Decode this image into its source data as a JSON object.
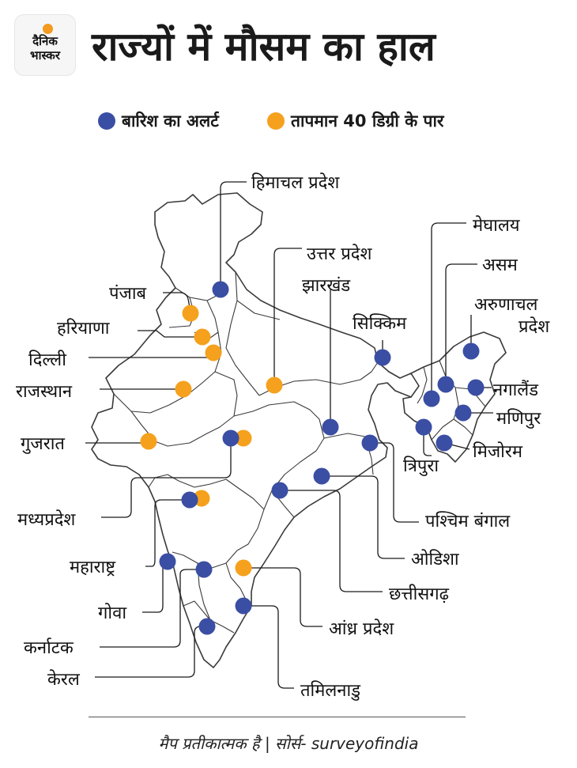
{
  "brand": {
    "line1": "दैनिक",
    "line2": "भास्कर",
    "dot_color": "#f39a1f"
  },
  "title": "राज्यों में मौसम का हाल",
  "legend": [
    {
      "label": "बारिश का अलर्ट",
      "color": "#3a4ea3"
    },
    {
      "label": "तापमान 40 डिग्री के पार",
      "color": "#f5a11d"
    }
  ],
  "colors": {
    "rain": "#3a4ea3",
    "heat": "#f5a11d",
    "outline": "#3a3a3a"
  },
  "states": {
    "himachal": "हिमाचल प्रदेश",
    "uttar_pradesh": "उत्तर प्रदेश",
    "jharkhand": "झारखंड",
    "sikkim": "सिक्किम",
    "meghalaya": "मेघालय",
    "assam": "असम",
    "arunachal_1": "अरुणाचल",
    "arunachal_2": "प्रदेश",
    "nagaland": "नगालैंड",
    "manipur": "मणिपुर",
    "mizoram": "मिजोरम",
    "tripura": "त्रिपुरा",
    "punjab": "पंजाब",
    "haryana": "हरियाणा",
    "delhi": "दिल्ली",
    "rajasthan": "राजस्थान",
    "gujarat": "गुजरात",
    "madhya_pradesh": "मध्यप्रदेश",
    "maharashtra": "महाराष्ट्र",
    "goa": "गोवा",
    "karnataka": "कर्नाटक",
    "kerala": "केरल",
    "west_bengal": "पश्चिम बंगाल",
    "odisha": "ओडिशा",
    "chhattisgarh": "छत्तीसगढ़",
    "andhra_pradesh": "आंध्र प्रदेश",
    "tamil_nadu": "तमिलनाडु"
  },
  "alerts": {
    "rain": [
      "himachal",
      "jharkhand",
      "sikkim",
      "meghalaya",
      "assam",
      "arunachal",
      "nagaland",
      "manipur",
      "mizoram",
      "tripura",
      "west_bengal",
      "odisha",
      "chhattisgarh",
      "madhya_pradesh",
      "maharashtra",
      "goa",
      "karnataka",
      "kerala",
      "tamil_nadu"
    ],
    "heat": [
      "punjab",
      "haryana",
      "delhi",
      "rajasthan",
      "gujarat",
      "uttar_pradesh",
      "madhya_pradesh",
      "maharashtra",
      "andhra_pradesh"
    ]
  },
  "footer": "मैप प्रतीकात्मक है | सोर्स- surveyofindia"
}
